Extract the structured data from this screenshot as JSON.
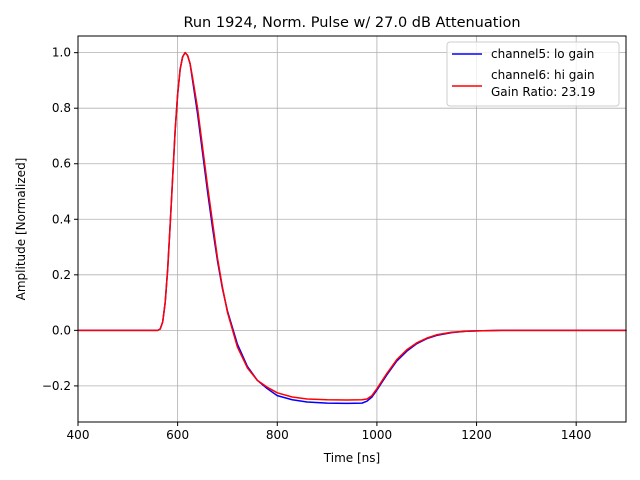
{
  "chart_data": {
    "type": "line",
    "title": "Run 1924, Norm. Pulse w/ 27.0 dB Attenuation",
    "xlabel": "Time [ns]",
    "ylabel": "Amplitude [Normalized]",
    "xlim": [
      400,
      1500
    ],
    "ylim": [
      -0.33,
      1.06
    ],
    "xticks": [
      400,
      600,
      800,
      1000,
      1200,
      1400
    ],
    "yticks": [
      -0.2,
      0.0,
      0.2,
      0.4,
      0.6,
      0.8,
      1.0
    ],
    "ytick_labels": [
      "−0.2",
      "0.0",
      "0.2",
      "0.4",
      "0.6",
      "0.8",
      "1.0"
    ],
    "grid": true,
    "legend_position": "top-right",
    "series": [
      {
        "name": "channel5: lo gain",
        "color": "#0000ff",
        "x": [
          400,
          500,
          560,
          565,
          570,
          575,
          580,
          585,
          590,
          595,
          600,
          605,
          610,
          615,
          620,
          625,
          630,
          640,
          650,
          660,
          670,
          680,
          690,
          700,
          720,
          740,
          760,
          780,
          800,
          830,
          860,
          900,
          940,
          970,
          980,
          990,
          1000,
          1020,
          1040,
          1060,
          1080,
          1100,
          1120,
          1150,
          1180,
          1200,
          1250,
          1300,
          1400,
          1500
        ],
        "y": [
          0.0,
          0.0,
          0.0,
          0.005,
          0.03,
          0.1,
          0.22,
          0.38,
          0.55,
          0.72,
          0.85,
          0.94,
          0.985,
          1.0,
          0.99,
          0.96,
          0.9,
          0.78,
          0.64,
          0.5,
          0.37,
          0.25,
          0.15,
          0.07,
          -0.05,
          -0.13,
          -0.18,
          -0.21,
          -0.235,
          -0.25,
          -0.258,
          -0.262,
          -0.263,
          -0.262,
          -0.255,
          -0.24,
          -0.215,
          -0.16,
          -0.11,
          -0.075,
          -0.048,
          -0.03,
          -0.018,
          -0.008,
          -0.003,
          -0.002,
          0.0,
          0.0,
          0.0,
          0.0
        ]
      },
      {
        "name": "channel6: hi gain",
        "label_extra": "Gain Ratio: 23.19",
        "color": "#ff0000",
        "x": [
          400,
          500,
          560,
          565,
          570,
          575,
          580,
          585,
          590,
          595,
          600,
          605,
          610,
          615,
          620,
          625,
          630,
          640,
          650,
          660,
          670,
          680,
          690,
          700,
          720,
          740,
          760,
          780,
          800,
          830,
          860,
          900,
          940,
          970,
          980,
          990,
          1000,
          1020,
          1040,
          1060,
          1080,
          1100,
          1120,
          1150,
          1180,
          1200,
          1250,
          1300,
          1400,
          1500
        ],
        "y": [
          0.0,
          0.0,
          0.0,
          0.005,
          0.03,
          0.1,
          0.22,
          0.38,
          0.55,
          0.72,
          0.85,
          0.94,
          0.985,
          1.0,
          0.99,
          0.96,
          0.91,
          0.8,
          0.66,
          0.52,
          0.39,
          0.26,
          0.155,
          0.065,
          -0.06,
          -0.135,
          -0.18,
          -0.205,
          -0.225,
          -0.24,
          -0.247,
          -0.25,
          -0.251,
          -0.25,
          -0.247,
          -0.235,
          -0.21,
          -0.155,
          -0.105,
          -0.07,
          -0.045,
          -0.028,
          -0.016,
          -0.007,
          -0.003,
          -0.002,
          0.0,
          0.0,
          0.0,
          0.0
        ]
      }
    ]
  }
}
